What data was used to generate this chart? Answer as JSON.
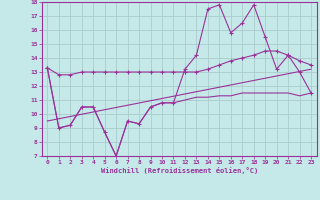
{
  "background_color": "#c5e8e8",
  "grid_color": "#aacccc",
  "line_color": "#993399",
  "xlabel": "Windchill (Refroidissement éolien,°C)",
  "xlim": [
    -0.5,
    23.5
  ],
  "ylim": [
    7,
    18
  ],
  "xtick_labels": [
    "0",
    "1",
    "2",
    "3",
    "4",
    "5",
    "6",
    "7",
    "8",
    "9",
    "10",
    "11",
    "12",
    "13",
    "14",
    "15",
    "16",
    "17",
    "18",
    "19",
    "20",
    "21",
    "22",
    "23"
  ],
  "ytick_labels": [
    "7",
    "8",
    "9",
    "10",
    "11",
    "12",
    "13",
    "14",
    "15",
    "16",
    "17",
    "18"
  ],
  "line1_x": [
    0,
    1,
    2,
    3,
    4,
    5,
    6,
    7,
    8,
    9,
    10,
    11,
    12,
    13,
    14,
    15,
    16,
    17,
    18,
    19,
    20,
    21,
    22,
    23
  ],
  "line1_y": [
    13.3,
    12.8,
    12.8,
    13.0,
    13.0,
    13.0,
    13.0,
    13.0,
    13.0,
    13.0,
    13.0,
    13.0,
    13.0,
    13.0,
    13.2,
    13.5,
    13.8,
    14.0,
    14.2,
    14.5,
    14.5,
    14.2,
    13.8,
    13.5
  ],
  "line2_x": [
    0,
    1,
    2,
    3,
    4,
    5,
    6,
    7,
    8,
    9,
    10,
    11,
    12,
    13,
    14,
    15,
    16,
    17,
    18,
    19,
    20,
    21,
    22,
    23
  ],
  "line2_y": [
    13.3,
    9.0,
    9.2,
    10.5,
    10.5,
    8.7,
    7.0,
    9.5,
    9.3,
    10.5,
    10.8,
    10.8,
    13.2,
    14.2,
    17.5,
    17.8,
    15.8,
    16.5,
    17.8,
    15.5,
    13.2,
    14.2,
    13.0,
    11.5
  ],
  "line3_x": [
    0,
    1,
    2,
    3,
    4,
    5,
    6,
    7,
    8,
    9,
    10,
    11,
    12,
    13,
    14,
    15,
    16,
    17,
    18,
    19,
    20,
    21,
    22,
    23
  ],
  "line3_y": [
    13.3,
    9.0,
    9.2,
    10.5,
    10.5,
    8.7,
    7.0,
    9.5,
    9.3,
    10.5,
    10.8,
    10.8,
    11.0,
    11.2,
    11.2,
    11.3,
    11.3,
    11.5,
    11.5,
    11.5,
    11.5,
    11.5,
    11.3,
    11.5
  ],
  "line4_x": [
    0,
    23
  ],
  "line4_y": [
    9.5,
    13.2
  ]
}
